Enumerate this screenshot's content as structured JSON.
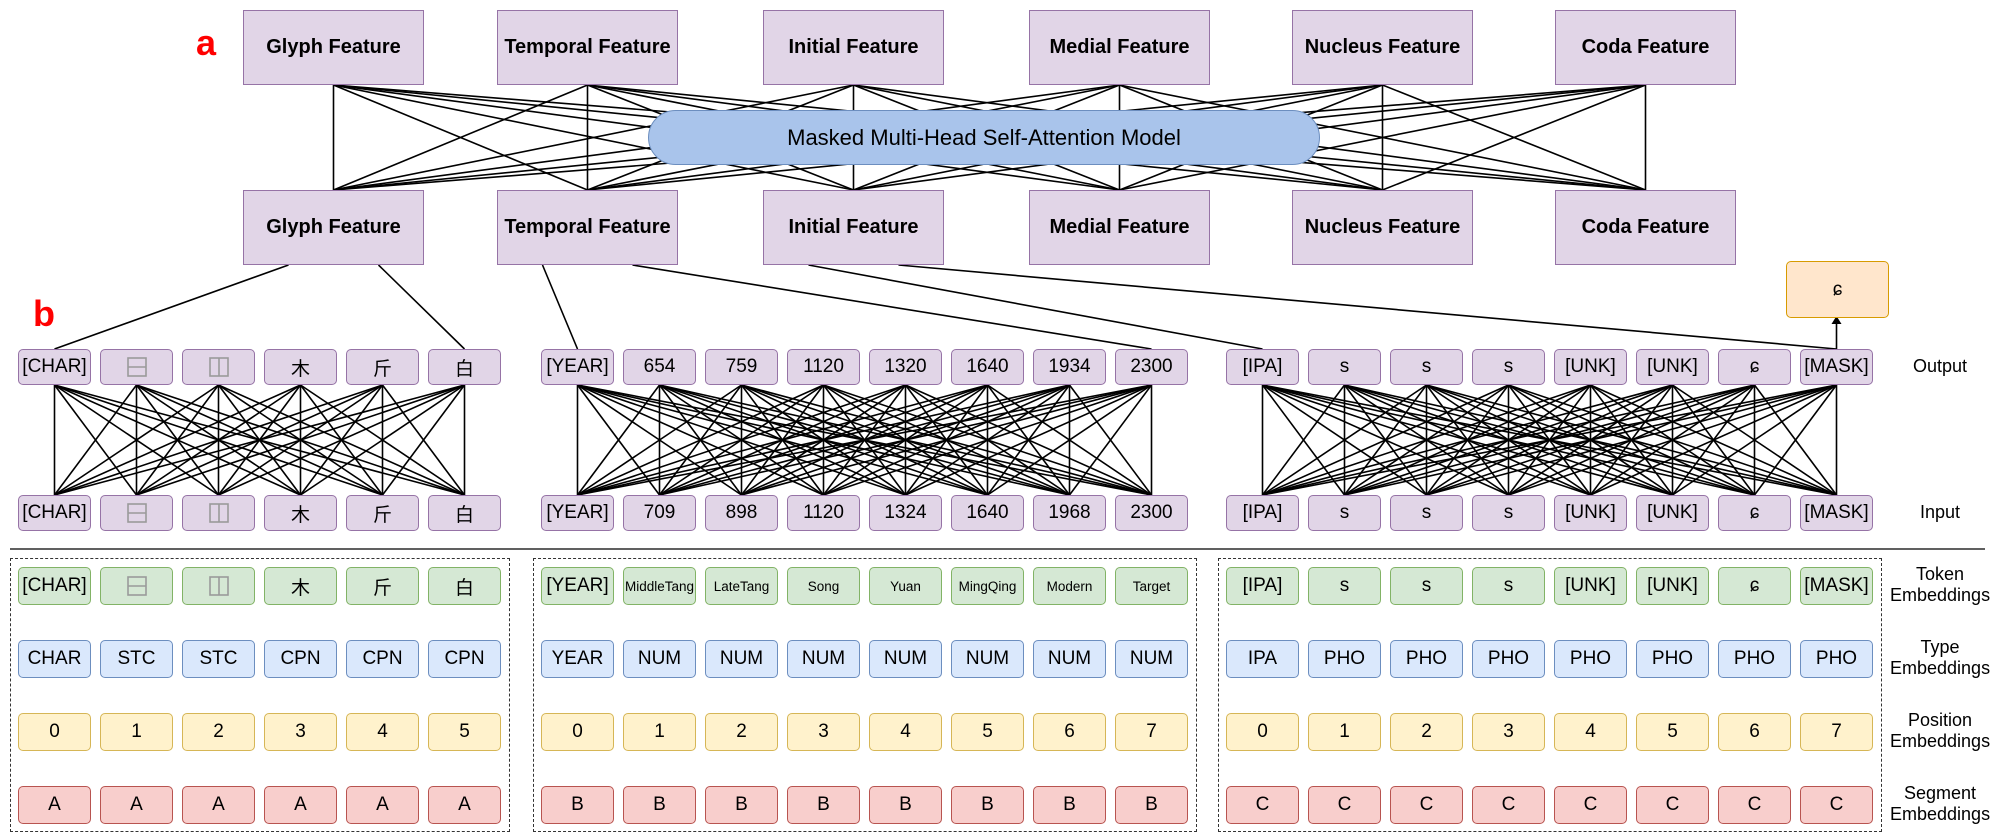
{
  "panel_labels": [
    "a",
    "b"
  ],
  "attention_model": "Masked Multi-Head Self-Attention Model",
  "features_top": [
    "Glyph Feature",
    "Temporal Feature",
    "Initial Feature",
    "Medial Feature",
    "Nucleus Feature",
    "Coda Feature"
  ],
  "features_bottom": [
    "Glyph Feature",
    "Temporal Feature",
    "Initial Feature",
    "Medial Feature",
    "Nucleus Feature",
    "Coda Feature"
  ],
  "predicted_output": "ɕ",
  "row_labels": {
    "output": "Output",
    "input": "Input",
    "token": [
      "Token",
      "Embeddings"
    ],
    "type": [
      "Type",
      "Embeddings"
    ],
    "position": [
      "Position",
      "Embeddings"
    ],
    "segment": [
      "Segment",
      "Embeddings"
    ]
  },
  "groups": [
    {
      "output": [
        "[CHAR]",
        "⿱-icon",
        "⿰-icon",
        "木",
        "斤",
        "白"
      ],
      "input": [
        "[CHAR]",
        "⿱-icon",
        "⿰-icon",
        "木",
        "斤",
        "白"
      ],
      "token": [
        "[CHAR]",
        "⿱-icon",
        "⿰-icon",
        "木",
        "斤",
        "白"
      ],
      "type": [
        "CHAR",
        "STC",
        "STC",
        "CPN",
        "CPN",
        "CPN"
      ],
      "position": [
        "0",
        "1",
        "2",
        "3",
        "4",
        "5"
      ],
      "segment": [
        "A",
        "A",
        "A",
        "A",
        "A",
        "A"
      ]
    },
    {
      "output": [
        "[YEAR]",
        "654",
        "759",
        "1120",
        "1320",
        "1640",
        "1934",
        "2300"
      ],
      "input": [
        "[YEAR]",
        "709",
        "898",
        "1120",
        "1324",
        "1640",
        "1968",
        "2300"
      ],
      "token": [
        "[YEAR]",
        "MiddleTang",
        "LateTang",
        "Song",
        "Yuan",
        "MingQing",
        "Modern",
        "Target"
      ],
      "type": [
        "YEAR",
        "NUM",
        "NUM",
        "NUM",
        "NUM",
        "NUM",
        "NUM",
        "NUM"
      ],
      "position": [
        "0",
        "1",
        "2",
        "3",
        "4",
        "5",
        "6",
        "7"
      ],
      "segment": [
        "B",
        "B",
        "B",
        "B",
        "B",
        "B",
        "B",
        "B"
      ]
    },
    {
      "output": [
        "[IPA]",
        "s",
        "s",
        "s",
        "[UNK]",
        "[UNK]",
        "ɕ",
        "[MASK]"
      ],
      "input": [
        "[IPA]",
        "s",
        "s",
        "s",
        "[UNK]",
        "[UNK]",
        "ɕ",
        "[MASK]"
      ],
      "token": [
        "[IPA]",
        "s",
        "s",
        "s",
        "[UNK]",
        "[UNK]",
        "ɕ",
        "[MASK]"
      ],
      "type": [
        "IPA",
        "PHO",
        "PHO",
        "PHO",
        "PHO",
        "PHO",
        "PHO",
        "PHO"
      ],
      "position": [
        "0",
        "1",
        "2",
        "3",
        "4",
        "5",
        "6",
        "7"
      ],
      "segment": [
        "C",
        "C",
        "C",
        "C",
        "C",
        "C",
        "C",
        "C"
      ]
    }
  ],
  "colors": {
    "feature": "#e1d5e7",
    "token_embedding": "#d5e8d4",
    "type_embedding": "#dae8fc",
    "position_embedding": "#fff2cc",
    "segment_embedding": "#f8cecc",
    "attention": "#a9c4eb",
    "prediction": "#ffe6cc",
    "panel_label": "#ff0000"
  }
}
